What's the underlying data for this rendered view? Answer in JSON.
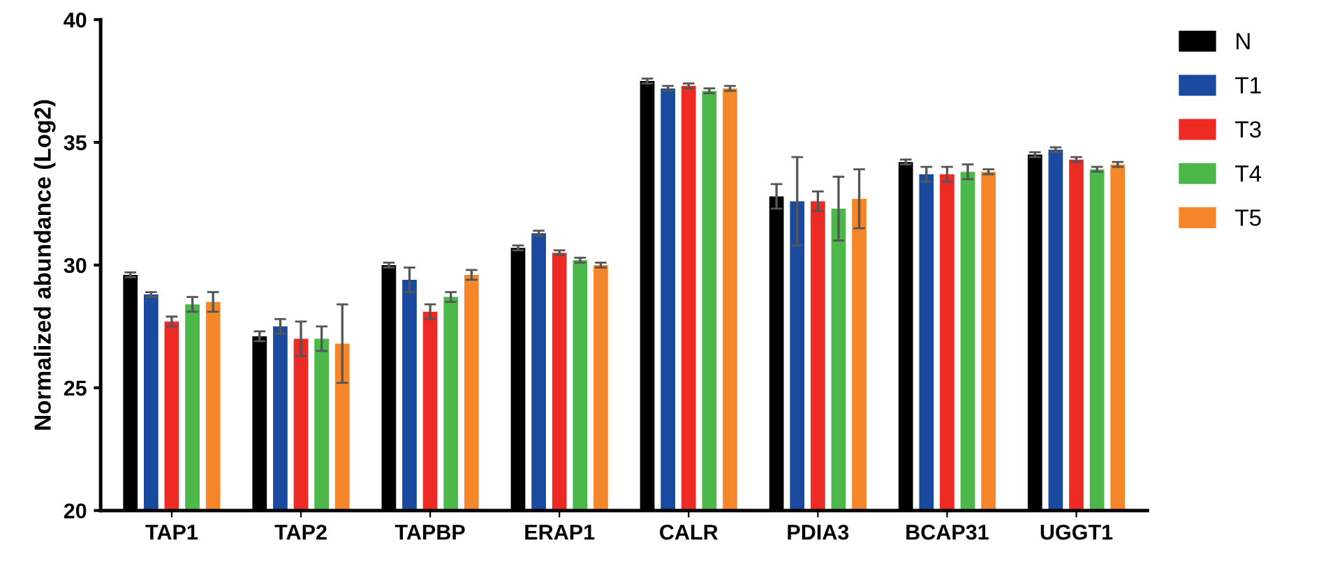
{
  "chart_data": {
    "type": "bar",
    "ylabel": "Normalized abundance (Log2)",
    "categories": [
      "TAP1",
      "TAP2",
      "TAPBP",
      "ERAP1",
      "CALR",
      "PDIA3",
      "BCAP31",
      "UGGT1"
    ],
    "series": [
      {
        "name": "N",
        "color": "#000000",
        "values": [
          29.6,
          27.1,
          30.0,
          30.7,
          37.5,
          32.8,
          34.2,
          34.5
        ],
        "errors": [
          0.1,
          0.2,
          0.1,
          0.1,
          0.1,
          0.5,
          0.1,
          0.1
        ]
      },
      {
        "name": "T1",
        "color": "#1a4aa0",
        "values": [
          28.8,
          27.5,
          29.4,
          31.3,
          37.2,
          32.6,
          33.7,
          34.7
        ],
        "errors": [
          0.1,
          0.3,
          0.5,
          0.1,
          0.1,
          1.8,
          0.3,
          0.1
        ]
      },
      {
        "name": "T3",
        "color": "#ee2a24",
        "values": [
          27.7,
          27.0,
          28.1,
          30.5,
          37.3,
          32.6,
          33.7,
          34.3
        ],
        "errors": [
          0.2,
          0.7,
          0.3,
          0.1,
          0.1,
          0.4,
          0.3,
          0.1
        ]
      },
      {
        "name": "T4",
        "color": "#4cb84a",
        "values": [
          28.4,
          27.0,
          28.7,
          30.2,
          37.1,
          32.3,
          33.8,
          33.9
        ],
        "errors": [
          0.3,
          0.5,
          0.2,
          0.1,
          0.1,
          1.3,
          0.3,
          0.1
        ]
      },
      {
        "name": "T5",
        "color": "#f5872a",
        "values": [
          28.5,
          26.8,
          29.6,
          30.0,
          37.2,
          32.7,
          33.8,
          34.1
        ],
        "errors": [
          0.4,
          1.6,
          0.2,
          0.1,
          0.1,
          1.2,
          0.1,
          0.1
        ]
      }
    ],
    "ylim": [
      20,
      40
    ],
    "yticks": [
      20,
      25,
      30,
      35,
      40
    ],
    "grid": false,
    "legend": "top right"
  }
}
